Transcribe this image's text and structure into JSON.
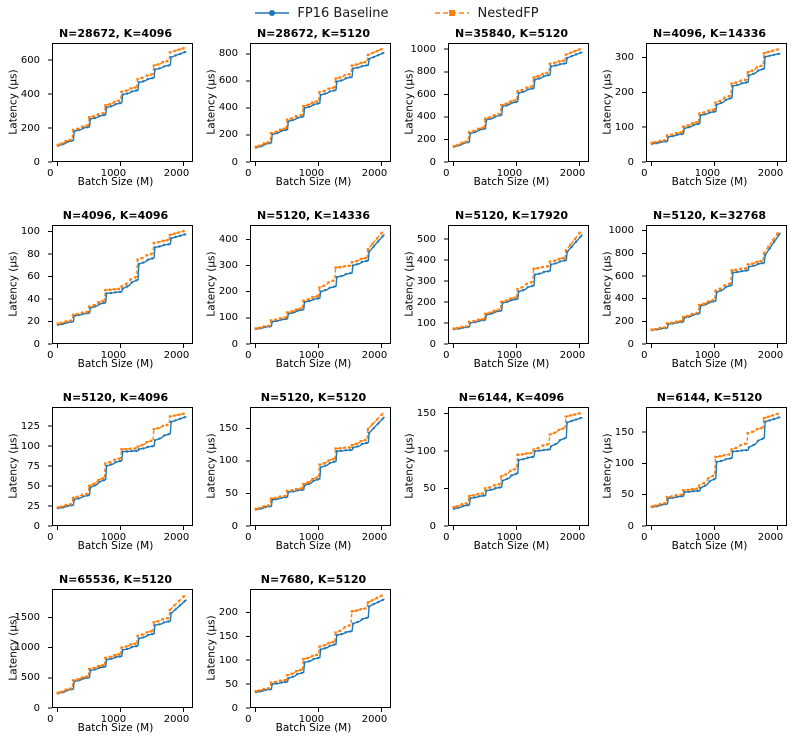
{
  "legend": {
    "baseline_label": "FP16 Baseline",
    "nested_label": "NestedFP"
  },
  "colors": {
    "baseline": "#1f77b4",
    "nested": "#ff7f0e",
    "spine": "#000000"
  },
  "axes": {
    "xlabel": "Batch Size (M)",
    "ylabel": "Latency (µs)",
    "xticks": [
      0,
      1000,
      2000
    ],
    "xlim": [
      -85,
      2150
    ]
  },
  "chart_data": {
    "type": "line",
    "note": "14 subplots of GEMM latency (microseconds) vs batch size M from 1 to 2048. Two staircase series per subplot: FP16 Baseline (blue solid, circle markers) and NestedFP (orange dashed, square markers). Latency jumps at multiples of 256; plateau values below are read off each subplot, 'end' is the value at M=2048.",
    "x_plateau_edges": [
      0,
      256,
      512,
      768,
      1024,
      1280,
      1536,
      1792,
      2048
    ],
    "subplots": [
      {
        "title": "N=28672, K=4096",
        "yticks": [
          0,
          200,
          400,
          600
        ],
        "ylim": [
          0,
          700
        ],
        "series": [
          {
            "name": "FP16 Baseline",
            "plateaus": [
              95,
              180,
              252,
              320,
              395,
              467,
              543,
              615
            ],
            "end": 650
          },
          {
            "name": "NestedFP",
            "plateaus": [
              99,
              188,
              262,
              332,
              412,
              487,
              566,
              644
            ],
            "end": 672
          }
        ]
      },
      {
        "title": "N=28672, K=5120",
        "yticks": [
          0,
          200,
          400,
          600,
          800
        ],
        "ylim": [
          0,
          880
        ],
        "series": [
          {
            "name": "FP16 Baseline",
            "plateaus": [
              105,
              203,
              300,
              398,
              495,
              593,
              690,
              760
            ],
            "end": 810
          },
          {
            "name": "NestedFP",
            "plateaus": [
              110,
              212,
              312,
              412,
              515,
              615,
              712,
              790
            ],
            "end": 840
          }
        ]
      },
      {
        "title": "N=35840, K=5120",
        "yticks": [
          0,
          200,
          400,
          600,
          800,
          1000
        ],
        "ylim": [
          0,
          1055
        ],
        "series": [
          {
            "name": "FP16 Baseline",
            "plateaus": [
              133,
              252,
              372,
              490,
              610,
              728,
              848,
              920
            ],
            "end": 975
          },
          {
            "name": "NestedFP",
            "plateaus": [
              138,
              262,
              383,
              503,
              626,
              748,
              870,
              950
            ],
            "end": 1005
          }
        ]
      },
      {
        "title": "N=4096, K=14336",
        "yticks": [
          0,
          100,
          200,
          300
        ],
        "ylim": [
          0,
          342
        ],
        "series": [
          {
            "name": "FP16 Baseline",
            "plateaus": [
              52,
              72,
              96,
              134,
              164,
              218,
              248,
              302
            ],
            "end": 312
          },
          {
            "name": "NestedFP",
            "plateaus": [
              55,
              76,
              101,
              139,
              170,
              225,
              257,
              312
            ],
            "end": 325
          }
        ]
      },
      {
        "title": "N=4096, K=4096",
        "yticks": [
          0,
          20,
          40,
          60,
          80,
          100
        ],
        "ylim": [
          0,
          106
        ],
        "series": [
          {
            "name": "FP16 Baseline",
            "plateaus": [
              17,
              25,
              32,
              45,
              49,
              71,
              86,
              94
            ],
            "end": 98
          },
          {
            "name": "NestedFP",
            "plateaus": [
              18,
              26,
              33,
              48,
              51,
              75,
              90,
              97
            ],
            "end": 101
          }
        ]
      },
      {
        "title": "N=5120, K=14336",
        "yticks": [
          0,
          100,
          200,
          300,
          400
        ],
        "ylim": [
          0,
          455
        ],
        "series": [
          {
            "name": "FP16 Baseline",
            "plateaus": [
              57,
              85,
              115,
              160,
              200,
              255,
              300,
              350
            ],
            "end": 420
          },
          {
            "name": "NestedFP",
            "plateaus": [
              59,
              90,
              120,
              165,
              215,
              292,
              312,
              360
            ],
            "end": 432
          }
        ]
      },
      {
        "title": "N=5120, K=17920",
        "yticks": [
          0,
          100,
          200,
          300,
          400,
          500
        ],
        "ylim": [
          0,
          567
        ],
        "series": [
          {
            "name": "FP16 Baseline",
            "plateaus": [
              70,
              100,
              138,
              195,
              248,
              330,
              378,
              435
            ],
            "end": 522
          },
          {
            "name": "NestedFP",
            "plateaus": [
              73,
              105,
              143,
              200,
              260,
              358,
              392,
              442
            ],
            "end": 540
          }
        ]
      },
      {
        "title": "N=5120, K=32768",
        "yticks": [
          0,
          200,
          400,
          600,
          800,
          1000
        ],
        "ylim": [
          0,
          1050
        ],
        "series": [
          {
            "name": "FP16 Baseline",
            "plateaus": [
              122,
              175,
              230,
              335,
              455,
              630,
              680,
              775
            ],
            "end": 985
          },
          {
            "name": "NestedFP",
            "plateaus": [
              126,
              182,
              237,
              342,
              468,
              650,
              700,
              792
            ],
            "end": 1000
          }
        ]
      },
      {
        "title": "N=5120, K=4096",
        "yticks": [
          0,
          25,
          50,
          75,
          100,
          125
        ],
        "ylim": [
          0,
          149
        ],
        "series": [
          {
            "name": "FP16 Baseline",
            "plateaus": [
              22,
              33,
              48,
              75,
              93,
              96,
              107,
              130
            ],
            "end": 137
          },
          {
            "name": "NestedFP",
            "plateaus": [
              23,
              35,
              50,
              78,
              96,
              99,
              121,
              137
            ],
            "end": 141
          }
        ]
      },
      {
        "title": "N=5120, K=5120",
        "yticks": [
          0,
          50,
          100,
          150
        ],
        "ylim": [
          0,
          183
        ],
        "series": [
          {
            "name": "FP16 Baseline",
            "plateaus": [
              25,
              40,
              52,
              62,
              90,
              115,
              120,
              142
            ],
            "end": 168
          },
          {
            "name": "NestedFP",
            "plateaus": [
              26,
              42,
              54,
              64,
              94,
              119,
              124,
              148
            ],
            "end": 174
          }
        ]
      },
      {
        "title": "N=6144, K=4096",
        "yticks": [
          0,
          50,
          100,
          150
        ],
        "ylim": [
          0,
          159
        ],
        "series": [
          {
            "name": "FP16 Baseline",
            "plateaus": [
              23,
              37,
              47,
              60,
              88,
              100,
              106,
              138
            ],
            "end": 145
          },
          {
            "name": "NestedFP",
            "plateaus": [
              25,
              40,
              50,
              66,
              95,
              102,
              122,
              146
            ],
            "end": 151
          }
        ]
      },
      {
        "title": "N=6144, K=5120",
        "yticks": [
          0,
          50,
          100,
          150
        ],
        "ylim": [
          0,
          190
        ],
        "series": [
          {
            "name": "FP16 Baseline",
            "plateaus": [
              30,
              44,
              54,
              60,
              102,
              119,
              125,
              166
            ],
            "end": 174
          },
          {
            "name": "NestedFP",
            "plateaus": [
              31,
              46,
              57,
              64,
              110,
              122,
              148,
              172
            ],
            "end": 180
          }
        ]
      },
      {
        "title": "N=65536, K=5120",
        "yticks": [
          0,
          500,
          1000,
          1500
        ],
        "ylim": [
          0,
          1975
        ],
        "series": [
          {
            "name": "FP16 Baseline",
            "plateaus": [
              240,
              440,
              620,
              800,
              960,
              1150,
              1370,
              1560
            ],
            "end": 1800
          },
          {
            "name": "NestedFP",
            "plateaus": [
              248,
              455,
              645,
              830,
              1000,
              1195,
              1420,
              1620
            ],
            "end": 1880
          }
        ]
      },
      {
        "title": "N=7680, K=5120",
        "yticks": [
          0,
          50,
          100,
          150,
          200
        ],
        "ylim": [
          0,
          249
        ],
        "series": [
          {
            "name": "FP16 Baseline",
            "plateaus": [
              33,
              50,
              62,
              95,
              122,
              152,
              176,
              212
            ],
            "end": 228
          },
          {
            "name": "NestedFP",
            "plateaus": [
              35,
              53,
              68,
              102,
              128,
              157,
              202,
              220
            ],
            "end": 237
          }
        ]
      }
    ]
  }
}
